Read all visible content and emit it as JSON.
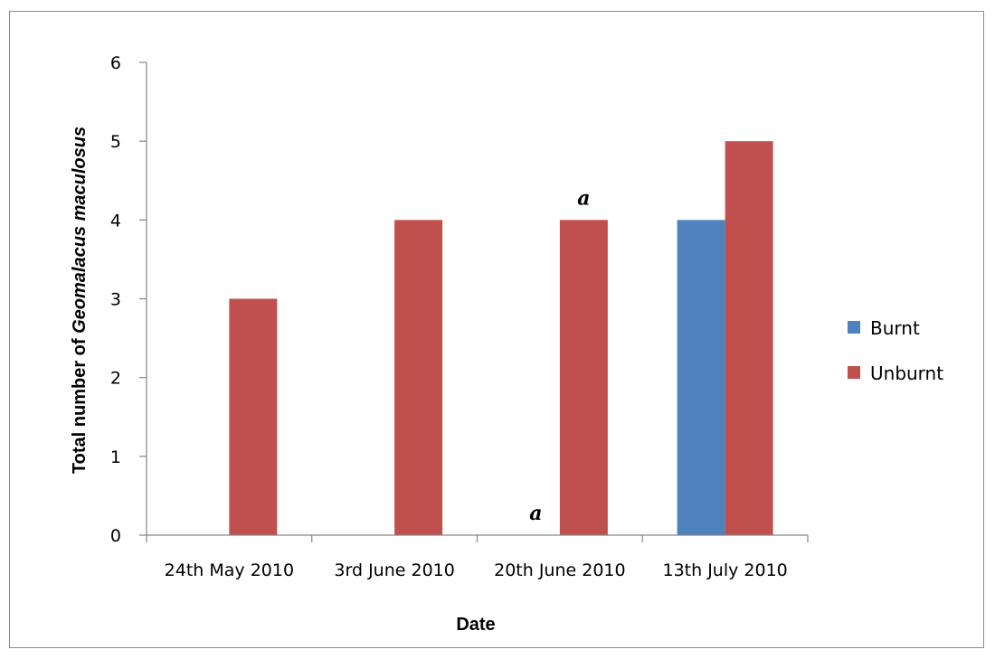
{
  "chart_data": {
    "type": "bar",
    "categories": [
      "24th May 2010",
      "3rd June 2010",
      "20th June 2010",
      "13th July 2010"
    ],
    "series": [
      {
        "name": "Burnt",
        "values": [
          0,
          0,
          0,
          4
        ],
        "color": "#4f81bd"
      },
      {
        "name": "Unburnt",
        "values": [
          3,
          4,
          4,
          5
        ],
        "color": "#c0504d"
      }
    ],
    "xlabel": "Date",
    "ylabel_plain": "Total number of ",
    "ylabel_italic": "Geomalacus maculosus",
    "ylim": [
      0,
      6
    ],
    "yticks": [
      "0",
      "1",
      "2",
      "3",
      "4",
      "5",
      "6"
    ],
    "grid": false,
    "legend_position": "right",
    "annotations": [
      {
        "text": "a",
        "category_index": 2,
        "series_index": 0,
        "value": 0
      },
      {
        "text": "a",
        "category_index": 2,
        "series_index": 1,
        "value": 4
      }
    ]
  }
}
